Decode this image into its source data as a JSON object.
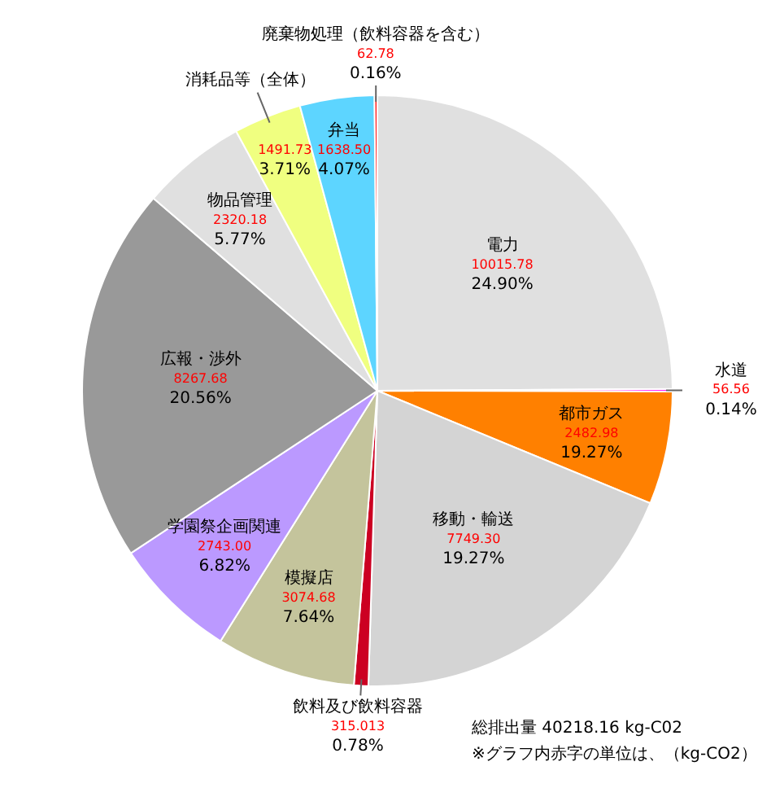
{
  "chart_data": {
    "type": "pie",
    "categories": [
      "電力",
      "水道",
      "都市ガス",
      "移動・輸送",
      "飲料及び飲料容器",
      "模擬店",
      "学園祭企画関連",
      "広報・渉外",
      "物品管理",
      "消耗品等（全体）",
      "弁当",
      "廃棄物処理（飲料容器を含む）"
    ],
    "values": [
      10015.78,
      56.56,
      2482.98,
      7749.3,
      315.013,
      3074.68,
      2743.0,
      8267.68,
      2320.18,
      1491.73,
      1638.5,
      62.78
    ],
    "value_labels": [
      "10015.78",
      "56.56",
      "2482.98",
      "7749.30",
      "315.013",
      "3074.68",
      "2743.00",
      "8267.68",
      "2320.18",
      "1491.73",
      "1638.50",
      "62.78"
    ],
    "colors": [
      "#e0e0e0",
      "#ff00ff",
      "#ff8000",
      "#d4d4d4",
      "#cc0022",
      "#c4c49c",
      "#bb99ff",
      "#999999",
      "#e0e0e0",
      "#f0ff80",
      "#5dd5ff",
      "#ff2020"
    ],
    "legend": false,
    "annotations": [
      {
        "text": "24.90%",
        "x": "電力"
      },
      {
        "text": "0.14%",
        "x": "水道"
      },
      {
        "text": "19.27%",
        "x": "都市ガス"
      },
      {
        "text": "19.27%",
        "x": "移動・輸送"
      },
      {
        "text": "0.78%",
        "x": "飲料及び飲料容器"
      },
      {
        "text": "7.64%",
        "x": "模擬店"
      },
      {
        "text": "6.82%",
        "x": "学園祭企画関連"
      },
      {
        "text": "20.56%",
        "x": "広報・渉外"
      },
      {
        "text": "5.77%",
        "x": "物品管理"
      },
      {
        "text": "3.71%",
        "x": "消耗品等（全体）"
      },
      {
        "text": "4.07%",
        "x": "弁当"
      },
      {
        "text": "0.16%",
        "x": "廃棄物処理（飲料容器を含む）"
      },
      "総排出量 40218.16 kg-C02",
      "※グラフ内赤字の単位は、（kg-CO2）"
    ]
  }
}
